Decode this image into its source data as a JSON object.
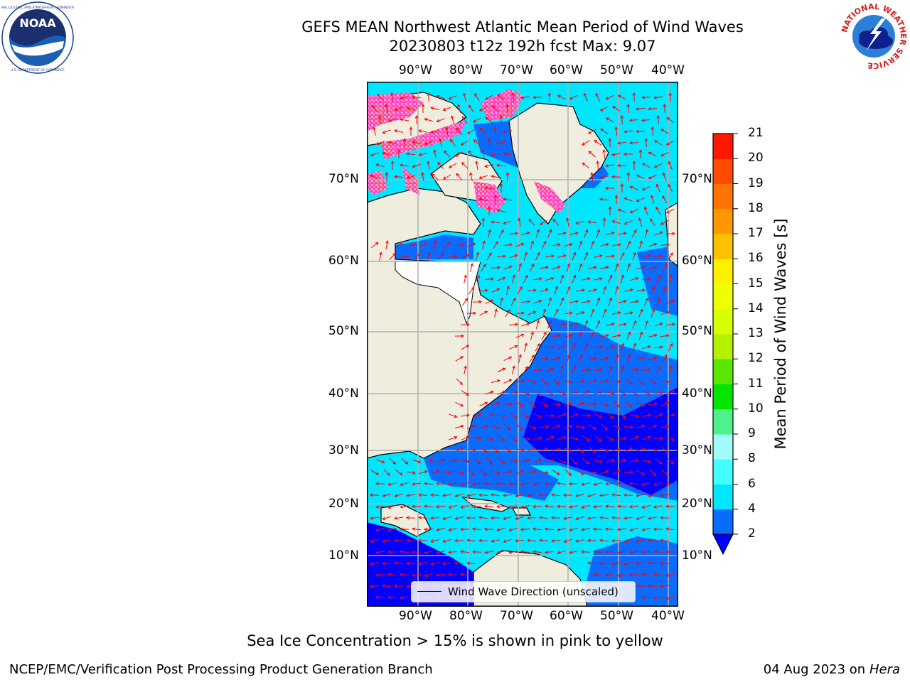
{
  "header": {
    "title_line1": "GEFS MEAN Northwest Atlantic Mean Period of Wind Waves",
    "title_line2": "20230803 t12z 192h fcst   Max: 9.07"
  },
  "logos": {
    "left": {
      "icon": "noaa-logo",
      "text": "NOAA",
      "ring_text": "NATIONAL OCEANIC AND ATMOSPHERIC ADMINISTRATION · U.S. DEPARTMENT OF COMMERCE"
    },
    "right": {
      "icon": "nws-logo",
      "ring_text": "NATIONAL WEATHER SERVICE"
    }
  },
  "map": {
    "lon_ticks": [
      "90°W",
      "80°W",
      "70°W",
      "60°W",
      "50°W",
      "40°W"
    ],
    "lat_ticks": [
      "70°N",
      "60°N",
      "50°N",
      "40°N",
      "30°N",
      "20°N",
      "10°N"
    ],
    "colors": {
      "land": "#efedde",
      "grid": "#b0b0b0",
      "arrows": "#ff0000",
      "ice_pink": "#ff44c0"
    }
  },
  "legend": {
    "label": "Wind Wave Direction (unscaled)"
  },
  "colorbar": {
    "label": "Mean Period of Wind Waves [s]",
    "ticks": [
      "2",
      "4",
      "6",
      "8",
      "9",
      "10",
      "11",
      "12",
      "13",
      "14",
      "15",
      "16",
      "17",
      "18",
      "19",
      "20",
      "21"
    ],
    "colors": [
      "#0a6cff",
      "#00e6ff",
      "#44ffff",
      "#9ffcfc",
      "#4ff28a",
      "#00e600",
      "#5ae600",
      "#b4f000",
      "#d8ff00",
      "#f0ff00",
      "#fff000",
      "#ffc000",
      "#ff9800",
      "#ff7400",
      "#ff4a00",
      "#ff1800"
    ],
    "extend_color": "#0000ff"
  },
  "caption": "Sea Ice Concentration > 15% is shown in pink to yellow",
  "footer": {
    "left": "NCEP/EMC/Verification Post Processing Product Generation Branch",
    "right_date": "04 Aug 2023 on",
    "right_host": "Hera"
  }
}
